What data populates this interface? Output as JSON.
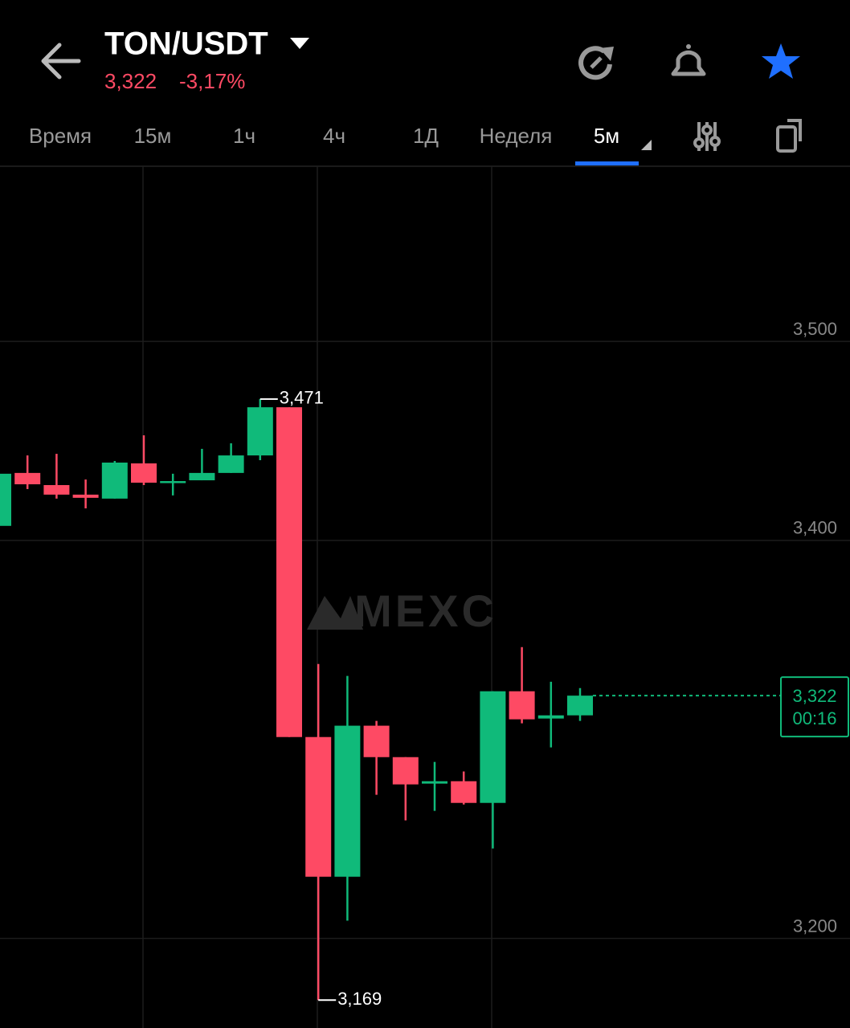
{
  "header": {
    "pair": "TON/USDT",
    "price": "3,322",
    "change": "-3,17%"
  },
  "tabs": [
    "Время",
    "15м",
    "1ч",
    "4ч",
    "1Д",
    "Неделя",
    "5м"
  ],
  "active_tab": 6,
  "chart_data": {
    "type": "candlestick",
    "watermark": "MEXC",
    "ylim": [
      3.155,
      3.588
    ],
    "yticks": [
      {
        "value": 3.2,
        "label": "3,200"
      },
      {
        "value": 3.4,
        "label": "3,400"
      },
      {
        "value": 3.5,
        "label": "3,500"
      }
    ],
    "grid": true,
    "up_color": "#10ba7a",
    "down_color": "#fe4a64",
    "open": [
      3.4073,
      3.4339,
      3.4278,
      3.423,
      3.421,
      3.4387,
      3.429,
      3.4302,
      3.4339,
      3.4427,
      3.4669,
      3.3012,
      3.231,
      3.3069,
      3.2911,
      3.2778,
      3.279,
      3.2681,
      3.3242,
      3.3105,
      3.3121
    ],
    "high": [
      3.4335,
      3.4427,
      3.4435,
      3.4306,
      3.4399,
      3.4528,
      3.4335,
      3.446,
      3.4488,
      3.471,
      3.4669,
      3.3379,
      3.3319,
      3.3093,
      3.2911,
      3.2887,
      3.2839,
      3.3242,
      3.3464,
      3.329,
      3.3258
    ],
    "low": [
      3.4073,
      3.4258,
      3.421,
      3.4161,
      3.421,
      3.4278,
      3.4226,
      3.4302,
      3.4339,
      3.4403,
      3.3012,
      3.169,
      3.2089,
      3.2722,
      3.2593,
      3.2641,
      3.2673,
      3.2452,
      3.3081,
      3.296,
      3.3093
    ],
    "close": [
      3.4335,
      3.4282,
      3.423,
      3.4214,
      3.4391,
      3.429,
      3.4298,
      3.4339,
      3.4427,
      3.4669,
      3.3012,
      3.231,
      3.3069,
      3.2911,
      3.2774,
      3.279,
      3.2681,
      3.3242,
      3.3101,
      3.3121,
      3.322
    ],
    "high_label": "3,471",
    "low_label": "3,169",
    "last_price_label": "3,322",
    "countdown": "00:16"
  }
}
